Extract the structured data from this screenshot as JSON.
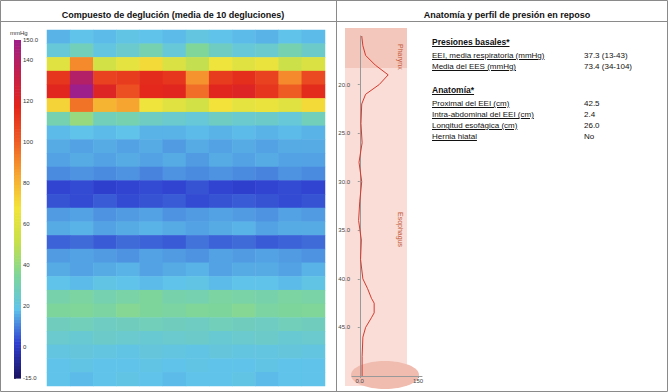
{
  "chart_data": [
    {
      "type": "heatmap",
      "title": "Compuesto de deglución (media de 10 degluciones)",
      "tick_labels": false,
      "cells": [
        [
          16,
          18,
          17,
          19,
          18,
          17,
          20,
          18,
          17,
          16,
          18,
          17
        ],
        [
          22,
          28,
          20,
          24,
          30,
          22,
          35,
          26,
          22,
          24,
          30,
          25
        ],
        [
          60,
          90,
          55,
          62,
          70,
          58,
          50,
          66,
          60,
          64,
          52,
          58
        ],
        [
          112,
          140,
          108,
          110,
          115,
          112,
          88,
          110,
          114,
          108,
          90,
          106
        ],
        [
          118,
          150,
          120,
          104,
          116,
          118,
          96,
          118,
          120,
          112,
          100,
          115
        ],
        [
          72,
          95,
          80,
          84,
          66,
          60,
          55,
          68,
          62,
          64,
          60,
          70
        ],
        [
          30,
          40,
          28,
          30,
          26,
          24,
          22,
          26,
          24,
          25,
          22,
          28
        ],
        [
          17,
          18,
          17,
          18,
          16,
          16,
          17,
          16,
          17,
          16,
          17,
          16
        ],
        [
          15,
          14,
          15,
          14,
          15,
          13,
          15,
          14,
          15,
          14,
          15,
          15
        ],
        [
          14,
          15,
          14,
          15,
          14,
          15,
          13,
          15,
          14,
          15,
          14,
          14
        ],
        [
          11,
          12,
          11,
          12,
          10,
          12,
          11,
          12,
          11,
          10,
          12,
          11
        ],
        [
          2,
          3,
          1,
          2,
          3,
          2,
          4,
          2,
          1,
          2,
          3,
          2
        ],
        [
          4,
          3,
          5,
          3,
          4,
          5,
          3,
          4,
          5,
          4,
          3,
          4
        ],
        [
          13,
          14,
          12,
          13,
          14,
          12,
          13,
          14,
          13,
          12,
          14,
          13
        ],
        [
          15,
          16,
          14,
          15,
          16,
          15,
          14,
          15,
          16,
          14,
          15,
          15
        ],
        [
          6,
          7,
          5,
          7,
          6,
          5,
          8,
          6,
          7,
          5,
          6,
          7
        ],
        [
          13,
          14,
          13,
          12,
          14,
          13,
          12,
          14,
          13,
          14,
          13,
          12
        ],
        [
          15,
          14,
          15,
          16,
          14,
          15,
          16,
          14,
          15,
          15,
          14,
          16
        ],
        [
          18,
          17,
          19,
          18,
          17,
          18,
          19,
          17,
          18,
          18,
          17,
          19
        ],
        [
          31,
          33,
          30,
          32,
          34,
          31,
          30,
          33,
          32,
          31,
          33,
          32
        ],
        [
          34,
          35,
          33,
          36,
          34,
          33,
          35,
          34,
          36,
          33,
          34,
          35
        ],
        [
          27,
          28,
          26,
          27,
          28,
          27,
          26,
          28,
          27,
          26,
          28,
          27
        ],
        [
          24,
          23,
          25,
          24,
          23,
          24,
          25,
          23,
          24,
          25,
          23,
          24
        ],
        [
          20,
          21,
          20,
          19,
          21,
          20,
          19,
          21,
          20,
          20,
          21,
          20
        ],
        [
          18,
          19,
          18,
          18,
          19,
          18,
          19,
          18,
          18,
          19,
          18,
          18
        ],
        [
          18,
          17,
          18,
          19,
          18,
          17,
          18,
          18,
          19,
          17,
          18,
          18
        ]
      ],
      "colorbar": {
        "title": "mmHg",
        "range": [
          -15,
          150
        ],
        "ticks": [
          {
            "value": 150,
            "label": "150.0"
          },
          140,
          120,
          100,
          80,
          60,
          40,
          20,
          0,
          {
            "value": -15,
            "label": "-15.0"
          }
        ]
      }
    },
    {
      "type": "line",
      "x": [
        5,
        8,
        15,
        40,
        73,
        50,
        15,
        5,
        3,
        6,
        -2,
        5,
        0,
        -3,
        4,
        2,
        8,
        20,
        30,
        37,
        37,
        30,
        15,
        8,
        6,
        6
      ],
      "y": [
        15,
        16,
        17,
        18,
        19,
        20,
        21,
        22,
        24,
        26,
        28,
        30,
        32,
        34,
        36,
        38,
        40,
        41,
        42,
        42.5,
        43.5,
        44,
        45,
        46,
        48,
        50
      ],
      "xlim": [
        -20,
        160
      ],
      "xticks": [
        {
          "value": 0,
          "label": "0.0"
        },
        150
      ],
      "ylim": [
        15,
        50
      ],
      "yticks": [
        {
          "value": 20,
          "label": "20.0"
        },
        {
          "value": 25,
          "label": "25.0"
        },
        {
          "value": 30,
          "label": "30.0"
        },
        {
          "value": 35,
          "label": "35.0"
        },
        {
          "value": 40,
          "label": "40.0"
        },
        {
          "value": 45,
          "label": "45.0"
        }
      ],
      "color": "#d43a2f",
      "annotations": [
        "Pharynx",
        "Esophagus"
      ]
    }
  ],
  "summary": {
    "title": "Anatomía y perfil de presión en reposo",
    "sections": [
      {
        "heading": "Presiones basales*",
        "rows": [
          [
            "EEI, media respiratoria (mmHg)",
            "37.3 (13-43)"
          ],
          [
            "Media del EES (mmHg)",
            "73.4 (34-104)"
          ]
        ]
      },
      {
        "heading": "Anatomía*",
        "rows": [
          [
            "Proximal del EEI (cm)",
            "42.5"
          ],
          [
            "Intra-abdominal del EEI (cm)",
            "2.4"
          ],
          [
            "Longitud esofágica (cm)",
            "26.0"
          ],
          [
            "Hernia hiatal",
            "No"
          ]
        ]
      }
    ]
  }
}
